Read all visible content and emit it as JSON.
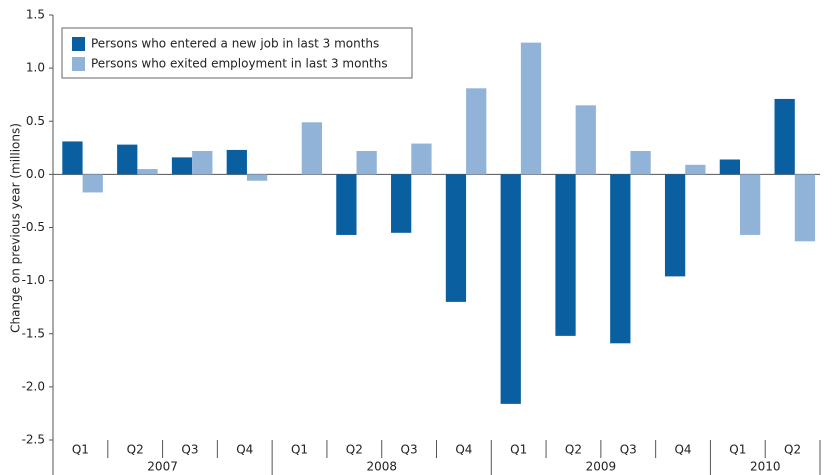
{
  "chart_data": {
    "type": "bar",
    "y_label": "Change on previous year (millions)",
    "groups": [
      {
        "label": "2007",
        "categories": [
          "Q1",
          "Q2",
          "Q3",
          "Q4"
        ]
      },
      {
        "label": "2008",
        "categories": [
          "Q1",
          "Q2",
          "Q3",
          "Q4"
        ]
      },
      {
        "label": "2009",
        "categories": [
          "Q1",
          "Q2",
          "Q3",
          "Q4"
        ]
      },
      {
        "label": "2010",
        "categories": [
          "Q1",
          "Q2"
        ]
      }
    ],
    "series": [
      {
        "name": "Persons who entered a new job in last 3 months",
        "color": "#0a5fa0",
        "values": [
          0.31,
          0.28,
          0.16,
          0.23,
          0,
          -0.57,
          -0.55,
          -1.2,
          -2.16,
          -1.52,
          -1.59,
          -0.96,
          0.14,
          0.71
        ]
      },
      {
        "name": "Persons who exited employment in last 3 months",
        "color": "#92b3d8",
        "values": [
          -0.17,
          0.05,
          0.22,
          -0.06,
          0.49,
          0.22,
          0.29,
          0.81,
          1.24,
          0.65,
          0.22,
          0.09,
          -0.57,
          -0.63
        ]
      }
    ],
    "ylim": [
      -2.5,
      1.5
    ],
    "yticks": [
      1.5,
      {
        "value": 1,
        "label": "1.0"
      },
      0.5,
      {
        "value": 0,
        "label": "0.0"
      },
      -0.5,
      {
        "value": -1,
        "label": "-1.0"
      },
      -1.5,
      {
        "value": -2,
        "label": "-2.0"
      },
      -2.5
    ],
    "grid": false,
    "legend": "upper left"
  }
}
